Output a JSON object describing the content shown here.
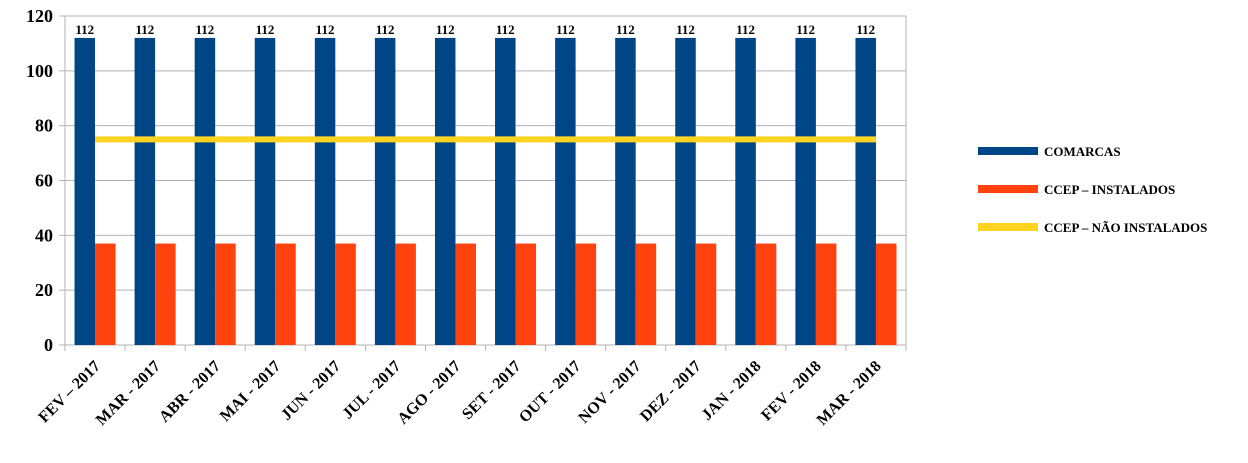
{
  "chart_data": {
    "type": "bar",
    "categories": [
      "FEV – 2017",
      "MAR - 2017",
      "ABR - 2017",
      "MAI - 2017",
      "JUN - 2017",
      "JUL - 2017",
      "AGO - 2017",
      "SET - 2017",
      "OUT - 2017",
      "NOV - 2017",
      "DEZ - 2017",
      "JAN - 2018",
      "FEV - 2018",
      "MAR - 2018"
    ],
    "series": [
      {
        "name": "COMARCAS",
        "type": "bar",
        "color": "#004586",
        "values": [
          112,
          112,
          112,
          112,
          112,
          112,
          112,
          112,
          112,
          112,
          112,
          112,
          112,
          112
        ],
        "show_labels": true
      },
      {
        "name": "CCEP – INSTALADOS",
        "type": "bar",
        "color": "#ff420e",
        "values": [
          37,
          37,
          37,
          37,
          37,
          37,
          37,
          37,
          37,
          37,
          37,
          37,
          37,
          37
        ],
        "show_labels": false
      },
      {
        "name": "CCEP – NÃO INSTALADOS",
        "type": "line",
        "color": "#ffd320",
        "values": [
          75,
          75,
          75,
          75,
          75,
          75,
          75,
          75,
          75,
          75,
          75,
          75,
          75,
          75
        ],
        "show_labels": false
      }
    ],
    "yticks": [
      "0",
      "20",
      "40",
      "60",
      "80",
      "100",
      "120"
    ],
    "ylim": [
      0,
      120
    ],
    "grid": true,
    "legend_position": "right"
  }
}
